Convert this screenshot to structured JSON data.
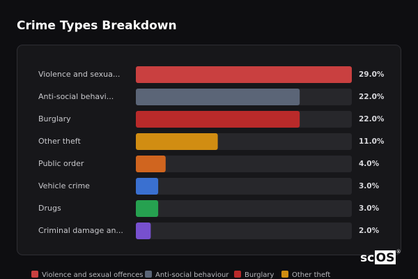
{
  "chart_data": {
    "type": "bar",
    "orientation": "horizontal",
    "title": "Crime Types Breakdown",
    "categories": [
      "Violence and sexua...",
      "Anti-social behavi...",
      "Burglary",
      "Other theft",
      "Public order",
      "Vehicle crime",
      "Drugs",
      "Criminal damage an..."
    ],
    "values": [
      29.0,
      22.0,
      22.0,
      11.0,
      4.0,
      3.0,
      3.0,
      2.0
    ],
    "value_labels": [
      "29.0%",
      "22.0%",
      "22.0%",
      "11.0%",
      "4.0%",
      "3.0%",
      "3.0%",
      "2.0%"
    ],
    "colors": [
      "#c94040",
      "#5b6577",
      "#b92a2a",
      "#d18d12",
      "#d0651f",
      "#3a70d0",
      "#26a150",
      "#7750cf"
    ],
    "xlim": [
      0,
      29.0
    ],
    "legend": [
      {
        "name": "Violence and sexual offences",
        "color": "#c94040"
      },
      {
        "name": "Anti-social behaviour",
        "color": "#5b6577"
      },
      {
        "name": "Burglary",
        "color": "#b92a2a"
      },
      {
        "name": "Other theft",
        "color": "#d18d12"
      }
    ]
  },
  "logo": {
    "prefix": "sc",
    "boxed": "OS",
    "mark": "®"
  }
}
